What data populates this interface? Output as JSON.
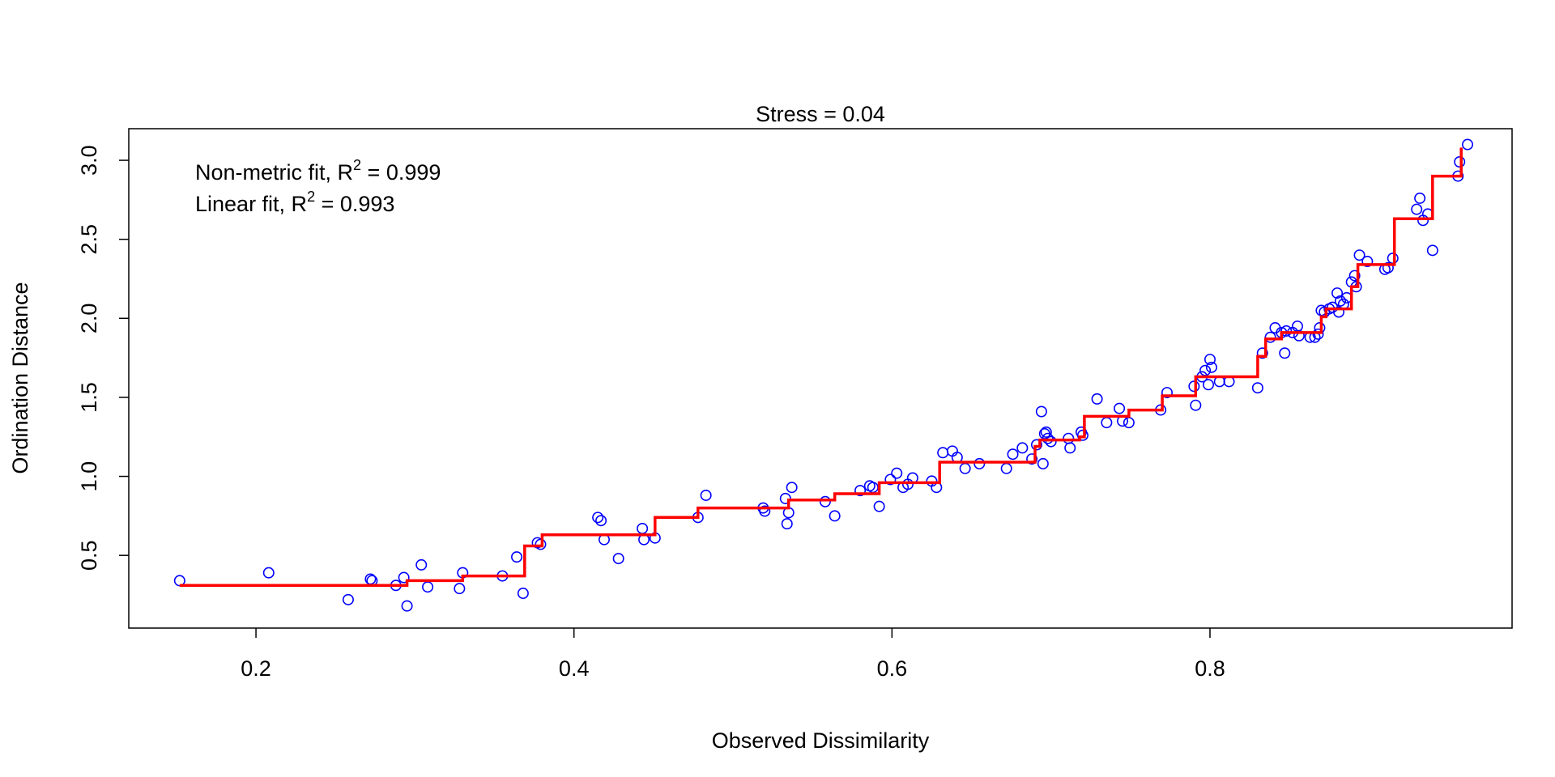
{
  "chart_data": {
    "type": "scatter",
    "title": "Stress = 0.04",
    "xlabel": "Observed Dissimilarity",
    "ylabel": "Ordination Distance",
    "xlim": [
      0.12,
      0.99
    ],
    "ylim": [
      0.04,
      3.2
    ],
    "xticks": [
      0.2,
      0.4,
      0.6,
      0.8
    ],
    "xtick_labels": [
      "0.2",
      "0.4",
      "0.6",
      "0.8"
    ],
    "yticks": [
      0.5,
      1.0,
      1.5,
      2.0,
      2.5,
      3.0
    ],
    "ytick_labels": [
      "0.5",
      "1.0",
      "1.5",
      "2.0",
      "2.5",
      "3.0"
    ],
    "grid": false,
    "annotations": [
      {
        "text": "Non-metric fit, R",
        "sup": "2",
        "value": " = 0.999"
      },
      {
        "text": "Linear fit, R",
        "sup": "2",
        "value": " = 0.993"
      }
    ],
    "colors": {
      "points": "#0000ff",
      "step_fit": "#ff0000",
      "axes": "#000000"
    },
    "points": [
      [
        0.152,
        0.34
      ],
      [
        0.208,
        0.39
      ],
      [
        0.258,
        0.22
      ],
      [
        0.272,
        0.35
      ],
      [
        0.273,
        0.34
      ],
      [
        0.288,
        0.31
      ],
      [
        0.293,
        0.36
      ],
      [
        0.295,
        0.18
      ],
      [
        0.304,
        0.44
      ],
      [
        0.308,
        0.3
      ],
      [
        0.328,
        0.29
      ],
      [
        0.33,
        0.39
      ],
      [
        0.355,
        0.37
      ],
      [
        0.364,
        0.49
      ],
      [
        0.368,
        0.26
      ],
      [
        0.377,
        0.58
      ],
      [
        0.379,
        0.57
      ],
      [
        0.415,
        0.74
      ],
      [
        0.417,
        0.72
      ],
      [
        0.419,
        0.6
      ],
      [
        0.428,
        0.48
      ],
      [
        0.443,
        0.67
      ],
      [
        0.444,
        0.6
      ],
      [
        0.451,
        0.61
      ],
      [
        0.478,
        0.74
      ],
      [
        0.483,
        0.88
      ],
      [
        0.519,
        0.8
      ],
      [
        0.52,
        0.78
      ],
      [
        0.533,
        0.86
      ],
      [
        0.534,
        0.7
      ],
      [
        0.535,
        0.77
      ],
      [
        0.537,
        0.93
      ],
      [
        0.558,
        0.84
      ],
      [
        0.564,
        0.75
      ],
      [
        0.58,
        0.91
      ],
      [
        0.586,
        0.94
      ],
      [
        0.588,
        0.93
      ],
      [
        0.592,
        0.81
      ],
      [
        0.599,
        0.98
      ],
      [
        0.603,
        1.02
      ],
      [
        0.607,
        0.93
      ],
      [
        0.61,
        0.95
      ],
      [
        0.613,
        0.99
      ],
      [
        0.625,
        0.97
      ],
      [
        0.628,
        0.93
      ],
      [
        0.632,
        1.15
      ],
      [
        0.638,
        1.16
      ],
      [
        0.641,
        1.12
      ],
      [
        0.646,
        1.05
      ],
      [
        0.655,
        1.08
      ],
      [
        0.672,
        1.05
      ],
      [
        0.676,
        1.14
      ],
      [
        0.682,
        1.18
      ],
      [
        0.688,
        1.11
      ],
      [
        0.691,
        1.2
      ],
      [
        0.694,
        1.41
      ],
      [
        0.696,
        1.27
      ],
      [
        0.697,
        1.28
      ],
      [
        0.698,
        1.24
      ],
      [
        0.7,
        1.22
      ],
      [
        0.695,
        1.08
      ],
      [
        0.711,
        1.24
      ],
      [
        0.712,
        1.18
      ],
      [
        0.719,
        1.28
      ],
      [
        0.72,
        1.26
      ],
      [
        0.729,
        1.49
      ],
      [
        0.735,
        1.34
      ],
      [
        0.743,
        1.43
      ],
      [
        0.745,
        1.35
      ],
      [
        0.749,
        1.34
      ],
      [
        0.769,
        1.42
      ],
      [
        0.773,
        1.53
      ],
      [
        0.79,
        1.57
      ],
      [
        0.791,
        1.45
      ],
      [
        0.795,
        1.63
      ],
      [
        0.797,
        1.67
      ],
      [
        0.799,
        1.58
      ],
      [
        0.8,
        1.74
      ],
      [
        0.801,
        1.69
      ],
      [
        0.806,
        1.6
      ],
      [
        0.812,
        1.6
      ],
      [
        0.83,
        1.56
      ],
      [
        0.833,
        1.78
      ],
      [
        0.838,
        1.88
      ],
      [
        0.841,
        1.94
      ],
      [
        0.845,
        1.91
      ],
      [
        0.847,
        1.78
      ],
      [
        0.848,
        1.92
      ],
      [
        0.852,
        1.91
      ],
      [
        0.855,
        1.95
      ],
      [
        0.856,
        1.89
      ],
      [
        0.863,
        1.88
      ],
      [
        0.866,
        1.88
      ],
      [
        0.868,
        1.9
      ],
      [
        0.869,
        1.94
      ],
      [
        0.87,
        2.05
      ],
      [
        0.872,
        2.04
      ],
      [
        0.875,
        2.06
      ],
      [
        0.877,
        2.07
      ],
      [
        0.88,
        2.16
      ],
      [
        0.881,
        2.04
      ],
      [
        0.882,
        2.11
      ],
      [
        0.884,
        2.09
      ],
      [
        0.886,
        2.13
      ],
      [
        0.889,
        2.23
      ],
      [
        0.891,
        2.27
      ],
      [
        0.892,
        2.2
      ],
      [
        0.894,
        2.4
      ],
      [
        0.899,
        2.36
      ],
      [
        0.91,
        2.31
      ],
      [
        0.912,
        2.32
      ],
      [
        0.915,
        2.38
      ],
      [
        0.93,
        2.69
      ],
      [
        0.932,
        2.76
      ],
      [
        0.934,
        2.62
      ],
      [
        0.937,
        2.66
      ],
      [
        0.94,
        2.43
      ],
      [
        0.956,
        2.9
      ],
      [
        0.957,
        2.99
      ],
      [
        0.962,
        3.1
      ]
    ],
    "step_fit": [
      [
        0.152,
        0.31
      ],
      [
        0.295,
        0.31
      ],
      [
        0.295,
        0.34
      ],
      [
        0.33,
        0.34
      ],
      [
        0.33,
        0.37
      ],
      [
        0.369,
        0.37
      ],
      [
        0.369,
        0.56
      ],
      [
        0.38,
        0.56
      ],
      [
        0.38,
        0.63
      ],
      [
        0.451,
        0.63
      ],
      [
        0.451,
        0.74
      ],
      [
        0.478,
        0.74
      ],
      [
        0.478,
        0.8
      ],
      [
        0.535,
        0.8
      ],
      [
        0.535,
        0.85
      ],
      [
        0.564,
        0.85
      ],
      [
        0.564,
        0.89
      ],
      [
        0.592,
        0.89
      ],
      [
        0.592,
        0.96
      ],
      [
        0.63,
        0.96
      ],
      [
        0.63,
        1.09
      ],
      [
        0.69,
        1.09
      ],
      [
        0.69,
        1.19
      ],
      [
        0.693,
        1.19
      ],
      [
        0.693,
        1.23
      ],
      [
        0.718,
        1.23
      ],
      [
        0.718,
        1.25
      ],
      [
        0.721,
        1.25
      ],
      [
        0.721,
        1.38
      ],
      [
        0.749,
        1.38
      ],
      [
        0.749,
        1.42
      ],
      [
        0.77,
        1.42
      ],
      [
        0.77,
        1.51
      ],
      [
        0.791,
        1.51
      ],
      [
        0.791,
        1.63
      ],
      [
        0.83,
        1.63
      ],
      [
        0.83,
        1.76
      ],
      [
        0.835,
        1.76
      ],
      [
        0.835,
        1.87
      ],
      [
        0.845,
        1.87
      ],
      [
        0.845,
        1.91
      ],
      [
        0.87,
        1.91
      ],
      [
        0.87,
        2.01
      ],
      [
        0.873,
        2.01
      ],
      [
        0.873,
        2.06
      ],
      [
        0.889,
        2.06
      ],
      [
        0.889,
        2.2
      ],
      [
        0.893,
        2.2
      ],
      [
        0.893,
        2.34
      ],
      [
        0.916,
        2.34
      ],
      [
        0.916,
        2.63
      ],
      [
        0.94,
        2.63
      ],
      [
        0.94,
        2.9
      ],
      [
        0.958,
        2.9
      ],
      [
        0.958,
        3.08
      ]
    ]
  }
}
